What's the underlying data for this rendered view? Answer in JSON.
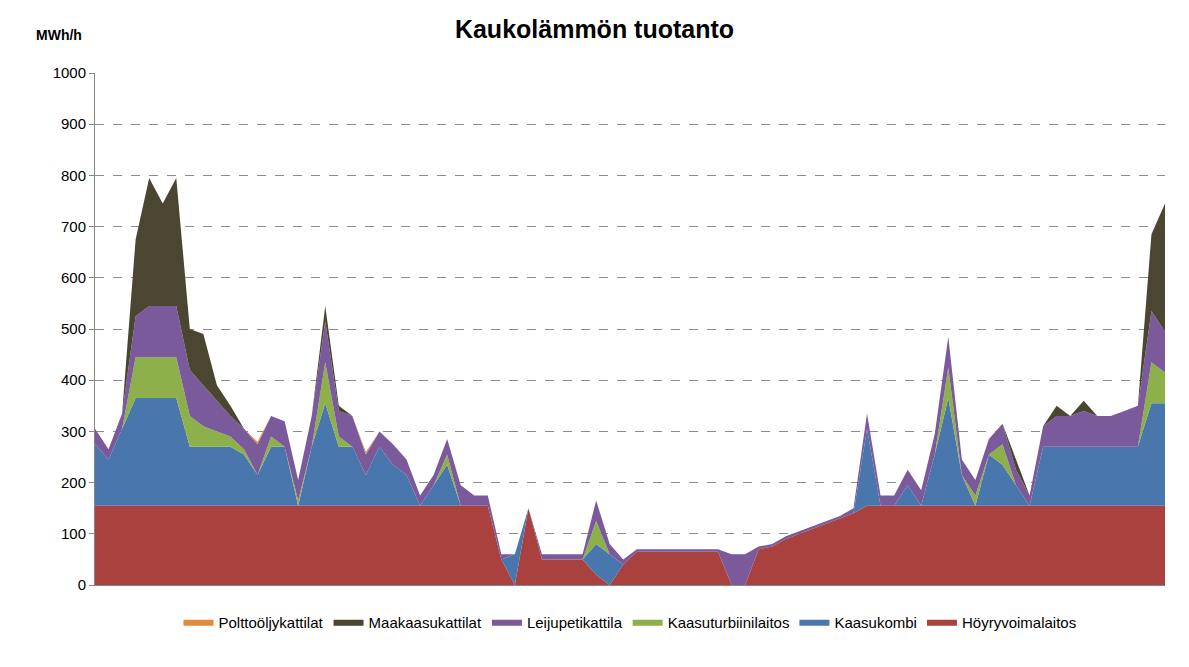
{
  "chart_data": {
    "type": "area",
    "title": "Kaukolämmön tuotanto",
    "y_label": "MWh/h",
    "stacked": true,
    "grid": true,
    "legend": "bottom",
    "tick_labels": "y",
    "ylim": [
      0,
      1000
    ],
    "yticks": [
      0,
      100,
      200,
      300,
      400,
      500,
      600,
      700,
      800,
      900,
      1000
    ],
    "categories": [
      null,
      null,
      null,
      null,
      null,
      null,
      null,
      null,
      null,
      null,
      null,
      null,
      null,
      null,
      null,
      null,
      null,
      null,
      null,
      null,
      null,
      null,
      null,
      null,
      null,
      null,
      null,
      null,
      null,
      null,
      null,
      null,
      null,
      null,
      null,
      null,
      null,
      null,
      null,
      null,
      null,
      null,
      null,
      null,
      null,
      null,
      null,
      null,
      null,
      null,
      null,
      null,
      null,
      null,
      null,
      null,
      null,
      null,
      null,
      null,
      null,
      null,
      null,
      null,
      null,
      null,
      null,
      null,
      null,
      null,
      null,
      null,
      null,
      null,
      null,
      null,
      null,
      null,
      null,
      null
    ],
    "series": [
      {
        "name": "Höyryvoimalaitos",
        "color": "#a9423f",
        "values": [
          155,
          155,
          155,
          155,
          155,
          155,
          155,
          155,
          155,
          155,
          155,
          155,
          155,
          155,
          155,
          155,
          155,
          155,
          155,
          155,
          155,
          155,
          155,
          155,
          155,
          155,
          155,
          155,
          155,
          155,
          50,
          0,
          150,
          50,
          50,
          50,
          50,
          20,
          0,
          40,
          65,
          65,
          65,
          65,
          65,
          65,
          65,
          0,
          0,
          70,
          75,
          90,
          100,
          110,
          120,
          130,
          140,
          155,
          155,
          155,
          155,
          155,
          155,
          155,
          155,
          155,
          155,
          155,
          155,
          155,
          155,
          155,
          155,
          155,
          155,
          155,
          155,
          155,
          155,
          155
        ]
      },
      {
        "name": "Kaasukombi",
        "color": "#4a76ae",
        "values": [
          120,
          90,
          150,
          210,
          210,
          210,
          210,
          115,
          115,
          115,
          115,
          100,
          60,
          115,
          115,
          0,
          115,
          200,
          115,
          115,
          60,
          115,
          80,
          60,
          0,
          40,
          80,
          0,
          0,
          0,
          0,
          60,
          0,
          0,
          0,
          0,
          0,
          60,
          60,
          0,
          0,
          0,
          0,
          0,
          0,
          0,
          0,
          0,
          0,
          0,
          0,
          0,
          0,
          0,
          0,
          0,
          0,
          150,
          0,
          0,
          40,
          0,
          100,
          210,
          60,
          0,
          100,
          80,
          40,
          0,
          115,
          115,
          115,
          115,
          115,
          115,
          115,
          115,
          200,
          200
        ]
      },
      {
        "name": "Kaasuturbiinilaitos",
        "color": "#8db04a",
        "values": [
          0,
          0,
          0,
          80,
          80,
          80,
          80,
          60,
          40,
          30,
          20,
          10,
          0,
          20,
          0,
          10,
          0,
          80,
          20,
          0,
          0,
          0,
          0,
          0,
          0,
          0,
          20,
          0,
          0,
          0,
          0,
          0,
          0,
          0,
          0,
          0,
          0,
          45,
          0,
          0,
          0,
          0,
          0,
          0,
          0,
          0,
          0,
          0,
          0,
          0,
          0,
          0,
          0,
          0,
          0,
          0,
          0,
          0,
          0,
          0,
          0,
          0,
          0,
          60,
          0,
          20,
          0,
          40,
          0,
          0,
          0,
          0,
          0,
          0,
          0,
          0,
          0,
          0,
          80,
          60
        ]
      },
      {
        "name": "Leijupetikattila",
        "color": "#7a5a9a",
        "values": [
          30,
          20,
          30,
          80,
          100,
          100,
          100,
          90,
          80,
          60,
          40,
          40,
          60,
          40,
          50,
          40,
          60,
          80,
          50,
          60,
          40,
          30,
          40,
          30,
          20,
          20,
          30,
          40,
          20,
          20,
          10,
          0,
          0,
          10,
          10,
          10,
          10,
          40,
          20,
          10,
          5,
          5,
          5,
          5,
          5,
          5,
          5,
          60,
          60,
          5,
          5,
          5,
          5,
          5,
          5,
          5,
          10,
          30,
          20,
          20,
          30,
          30,
          40,
          60,
          30,
          30,
          30,
          40,
          30,
          20,
          40,
          60,
          60,
          70,
          60,
          60,
          70,
          80,
          100,
          80
        ]
      },
      {
        "name": "Maakaasukattilat",
        "color": "#4a4632",
        "values": [
          0,
          0,
          0,
          150,
          250,
          200,
          250,
          80,
          100,
          30,
          20,
          0,
          0,
          0,
          0,
          0,
          0,
          30,
          10,
          0,
          0,
          0,
          0,
          0,
          0,
          0,
          0,
          0,
          0,
          0,
          0,
          0,
          0,
          0,
          0,
          0,
          0,
          0,
          0,
          0,
          0,
          0,
          0,
          0,
          0,
          0,
          0,
          0,
          0,
          0,
          0,
          0,
          0,
          0,
          0,
          0,
          0,
          0,
          0,
          0,
          0,
          0,
          0,
          0,
          0,
          0,
          0,
          0,
          20,
          0,
          0,
          20,
          0,
          20,
          0,
          0,
          0,
          0,
          150,
          250
        ]
      },
      {
        "name": "Polttoöljykattilat",
        "color": "#e08a3e",
        "values": [
          0,
          0,
          0,
          0,
          0,
          0,
          0,
          0,
          0,
          0,
          0,
          0,
          5,
          0,
          0,
          0,
          0,
          0,
          0,
          0,
          5,
          0,
          0,
          0,
          0,
          0,
          0,
          0,
          0,
          0,
          0,
          0,
          0,
          0,
          0,
          0,
          0,
          0,
          0,
          0,
          0,
          0,
          0,
          0,
          0,
          0,
          0,
          0,
          0,
          0,
          0,
          0,
          0,
          0,
          0,
          0,
          0,
          0,
          0,
          0,
          0,
          0,
          0,
          0,
          0,
          0,
          0,
          0,
          0,
          0,
          0,
          0,
          0,
          0,
          0,
          0,
          0,
          0,
          0,
          0
        ]
      }
    ]
  }
}
